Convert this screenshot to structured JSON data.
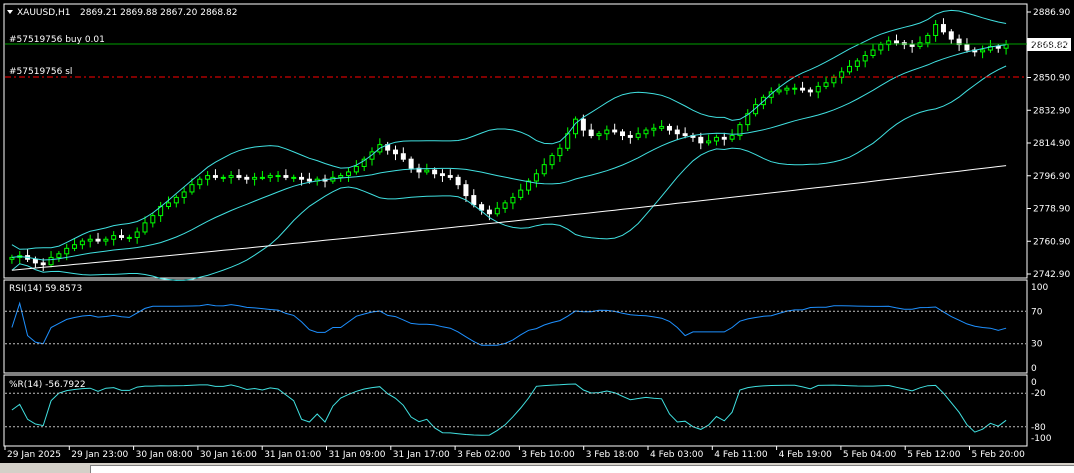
{
  "chart_title": {
    "symbol": "XAUUSD,H1",
    "ohlc": "2869.21 2869.88 2867.20 2868.82"
  },
  "order_labels": {
    "buy": "#57519756 buy 0.01",
    "sl": "#57519756 sl"
  },
  "current_price": "2868.82",
  "price_axis": {
    "ticks": [
      "2886.90",
      "2868.90",
      "2850.90",
      "2832.90",
      "2814.90",
      "2796.90",
      "2778.90",
      "2760.90",
      "2742.90"
    ],
    "min": 2742.9,
    "max": 2886.9
  },
  "rsi_panel": {
    "label": "RSI(14) 59.8573",
    "ticks": [
      "100",
      "70",
      "30",
      "0"
    ],
    "levels": [
      70,
      30
    ]
  },
  "wpr_panel": {
    "label": "%R(14) -56.7922",
    "ticks": [
      "0",
      "-20",
      "-80",
      "-100"
    ],
    "levels": [
      -20,
      -80
    ]
  },
  "time_axis": [
    "29 Jan 2025",
    "29 Jan 23:00",
    "30 Jan 08:00",
    "30 Jan 16:00",
    "31 Jan 01:00",
    "31 Jan 09:00",
    "31 Jan 17:00",
    "3 Feb 02:00",
    "3 Feb 10:00",
    "3 Feb 18:00",
    "4 Feb 03:00",
    "4 Feb 11:00",
    "4 Feb 19:00",
    "5 Feb 04:00",
    "5 Feb 12:00",
    "5 Feb 20:00"
  ],
  "colors": {
    "background": "#000000",
    "grid": "#ffffff",
    "bull": "#00ff00",
    "bear": "#ffffff",
    "bands": "#40e0e0",
    "ma": "#ffffff",
    "rsi": "#1e90ff",
    "wpr": "#40e0e0",
    "buy_line": "#00a000",
    "sl_line": "#ff0000"
  },
  "chart_data": {
    "type": "candlestick",
    "symbol": "XAUUSD",
    "timeframe": "H1",
    "close": [
      2752,
      2753,
      2751,
      2749,
      2748,
      2752,
      2754,
      2757,
      2759,
      2761,
      2762,
      2761,
      2762,
      2764,
      2763,
      2763,
      2766,
      2771,
      2775,
      2780,
      2782,
      2785,
      2788,
      2792,
      2795,
      2797,
      2796,
      2796,
      2797,
      2796,
      2795,
      2796,
      2796,
      2797,
      2797,
      2796,
      2796,
      2795,
      2794,
      2795,
      2794,
      2796,
      2797,
      2799,
      2802,
      2806,
      2810,
      2814,
      2811,
      2809,
      2806,
      2801,
      2799,
      2800,
      2798,
      2797,
      2796,
      2792,
      2786,
      2781,
      2778,
      2776,
      2779,
      2782,
      2785,
      2789,
      2794,
      2798,
      2803,
      2808,
      2812,
      2820,
      2828,
      2822,
      2819,
      2820,
      2822,
      2821,
      2819,
      2818,
      2820,
      2822,
      2823,
      2824,
      2822,
      2820,
      2819,
      2818,
      2815,
      2816,
      2818,
      2817,
      2819,
      2825,
      2831,
      2836,
      2840,
      2843,
      2844,
      2845,
      2845,
      2844,
      2843,
      2846,
      2848,
      2851,
      2854,
      2857,
      2860,
      2863,
      2866,
      2869,
      2871,
      2870,
      2869,
      2868,
      2870,
      2874,
      2880,
      2876,
      2872,
      2869,
      2866,
      2865,
      2866,
      2868,
      2867,
      2869
    ],
    "rsi_last": 59.8573,
    "wpr_last": -56.7922
  }
}
